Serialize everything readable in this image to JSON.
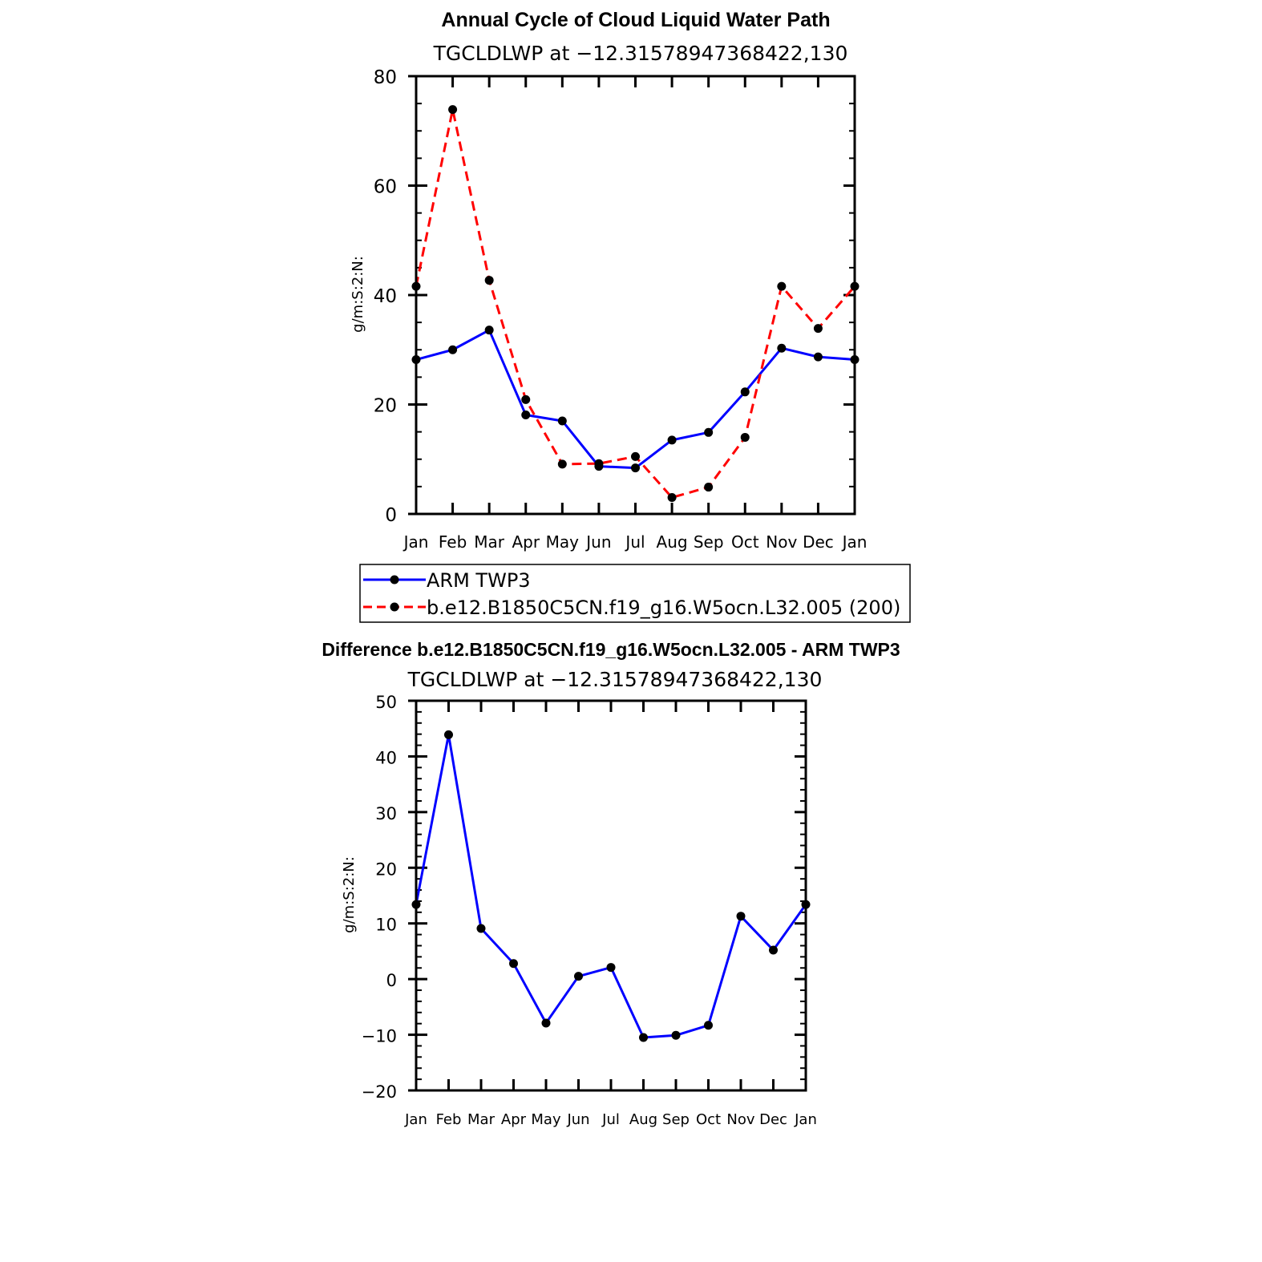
{
  "chart_data": [
    {
      "type": "line",
      "title": "Annual Cycle of Cloud Liquid Water Path",
      "subtitle": "TGCLDLWP at −12.31578947368422,130",
      "ylabel": "g/m:S:2:N:",
      "xlabel": "",
      "categories": [
        "Jan",
        "Feb",
        "Mar",
        "Apr",
        "May",
        "Jun",
        "Jul",
        "Aug",
        "Sep",
        "Oct",
        "Nov",
        "Dec",
        "Jan"
      ],
      "ylim": [
        0,
        80
      ],
      "yticks": [
        "0",
        "20",
        "40",
        "60",
        "80"
      ],
      "grid": false,
      "legend_position": "bottom",
      "series": [
        {
          "name": "ARM TWP3",
          "color": "#0000ff",
          "dash": "solid",
          "values": [
            28.2,
            30.0,
            33.6,
            18.1,
            17.0,
            8.7,
            8.4,
            13.5,
            14.9,
            22.3,
            30.3,
            28.7,
            28.2
          ]
        },
        {
          "name": "b.e12.B1850C5CN.f19_g16.W5ocn.L32.005 (200)",
          "color": "#ff0000",
          "dash": "dashed",
          "values": [
            41.6,
            73.9,
            42.7,
            20.9,
            9.1,
            9.2,
            10.5,
            3.0,
            4.9,
            14.0,
            41.6,
            33.9,
            41.6
          ]
        }
      ]
    },
    {
      "type": "line",
      "title": "Difference b.e12.B1850C5CN.f19_g16.W5ocn.L32.005 - ARM TWP3",
      "subtitle": "TGCLDLWP at −12.31578947368422,130",
      "ylabel": "g/m:S:2:N:",
      "xlabel": "",
      "categories": [
        "Jan",
        "Feb",
        "Mar",
        "Apr",
        "May",
        "Jun",
        "Jul",
        "Aug",
        "Sep",
        "Oct",
        "Nov",
        "Dec",
        "Jan"
      ],
      "ylim": [
        -20,
        50
      ],
      "yticks": [
        "−20",
        "−10",
        "0",
        "10",
        "20",
        "30",
        "40",
        "50"
      ],
      "grid": false,
      "series": [
        {
          "color": "#0000ff",
          "dash": "solid",
          "values": [
            13.4,
            43.9,
            9.1,
            2.8,
            -7.9,
            0.5,
            2.1,
            -10.5,
            -10.1,
            -8.3,
            11.3,
            5.2,
            13.4
          ]
        }
      ]
    }
  ]
}
